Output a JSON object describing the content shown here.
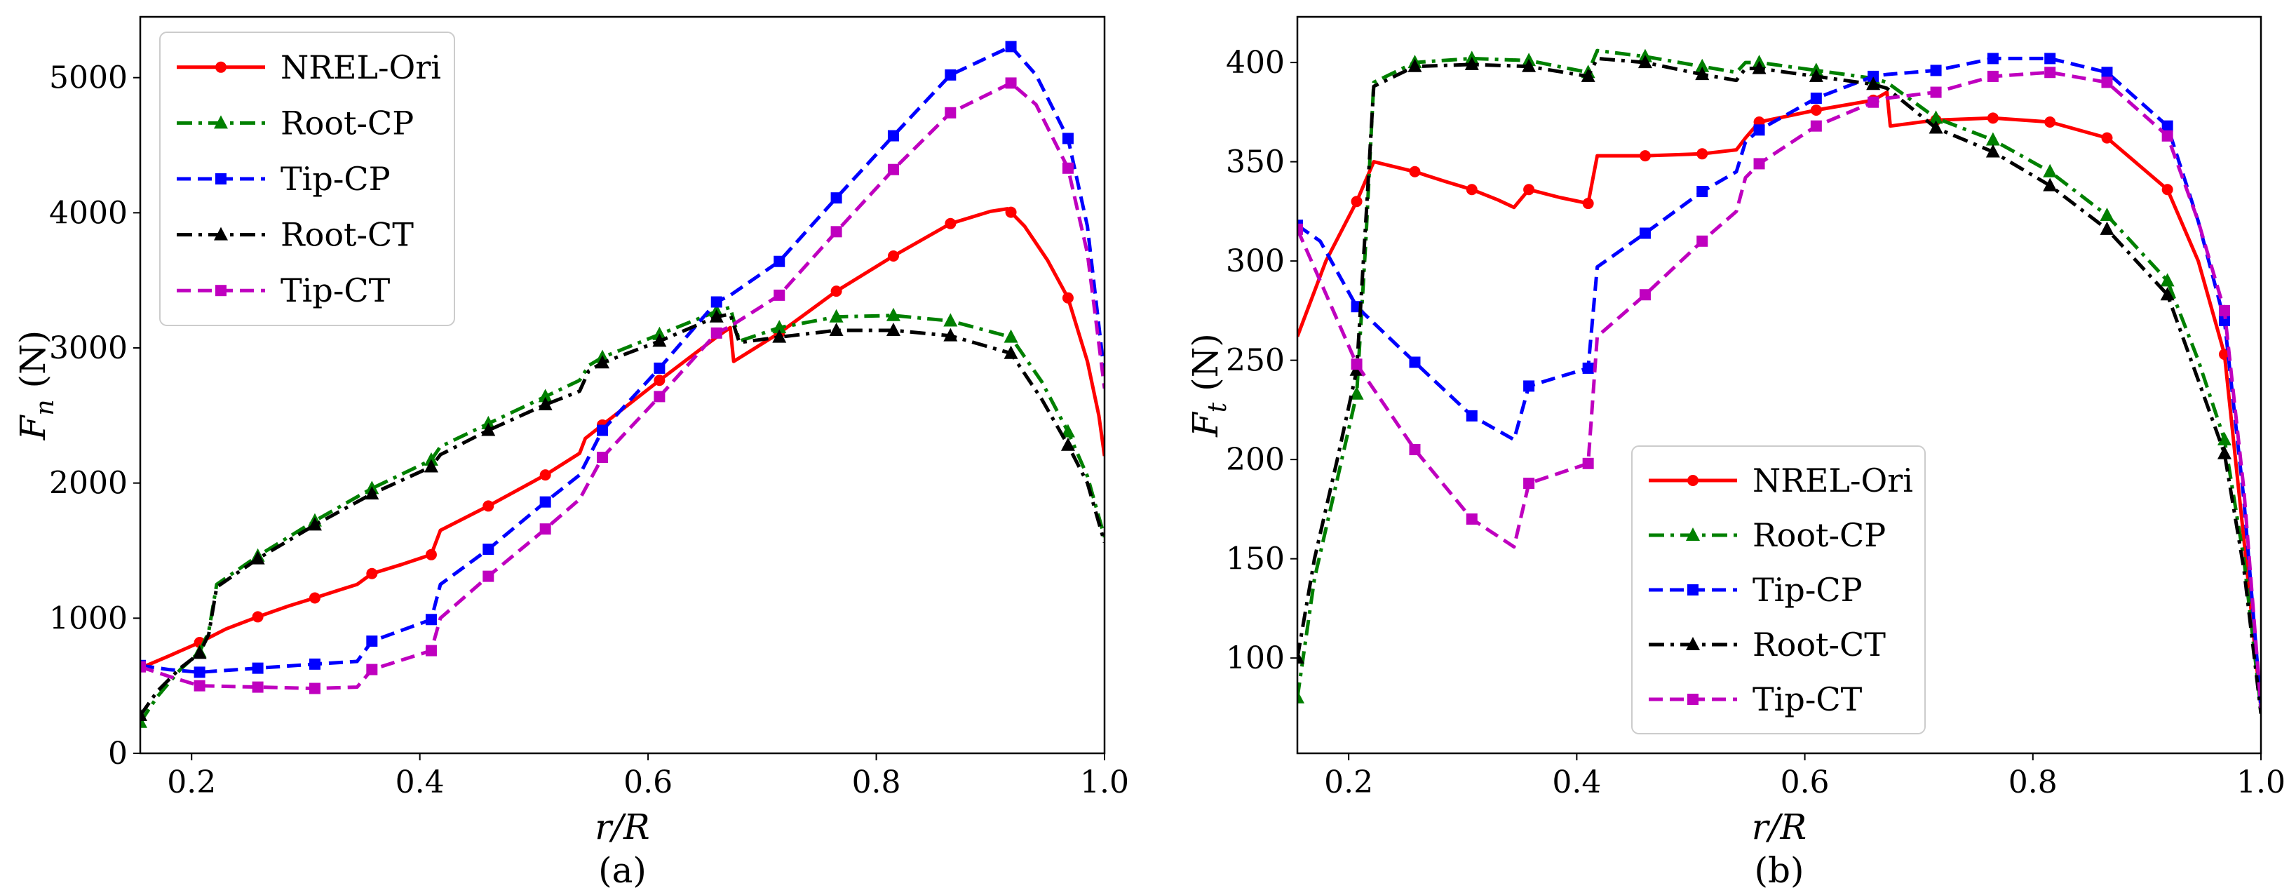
{
  "chart_data": [
    {
      "type": "line",
      "caption": "(a)",
      "xlabel": "r/R",
      "ylabel": "Fn (N)",
      "ylabel_main": "F",
      "ylabel_sub": "n",
      "ylabel_unit": " (N)",
      "xlim": [
        0.155,
        1.0
      ],
      "ylim": [
        0,
        5450
      ],
      "xticks": [
        0.2,
        0.4,
        0.6,
        0.8,
        1.0
      ],
      "xtick_labels": [
        "0.2",
        "0.4",
        "0.6",
        "0.8",
        "1.0"
      ],
      "yticks": [
        0,
        1000,
        2000,
        3000,
        4000,
        5000
      ],
      "ytick_labels": [
        "0",
        "1000",
        "2000",
        "3000",
        "4000",
        "5000"
      ],
      "legend_position": "upper-left",
      "series": [
        {
          "name": "NREL-Ori",
          "color": "#ff0000",
          "dash": "solid",
          "marker": "circle",
          "x": [
            0.155,
            0.18,
            0.207,
            0.23,
            0.258,
            0.285,
            0.308,
            0.33,
            0.345,
            0.358,
            0.385,
            0.41,
            0.418,
            0.46,
            0.51,
            0.54,
            0.545,
            0.56,
            0.61,
            0.66,
            0.672,
            0.675,
            0.715,
            0.765,
            0.815,
            0.865,
            0.9,
            0.915,
            0.93,
            0.95,
            0.968,
            0.985,
            0.995,
            1.0
          ],
          "y": [
            630,
            720,
            820,
            920,
            1010,
            1090,
            1150,
            1210,
            1250,
            1330,
            1400,
            1470,
            1650,
            1830,
            2060,
            2220,
            2330,
            2430,
            2760,
            3080,
            3150,
            2900,
            3110,
            3420,
            3680,
            3920,
            4010,
            4030,
            3900,
            3650,
            3370,
            2900,
            2500,
            2200
          ],
          "marker_x": [
            0.207,
            0.258,
            0.308,
            0.358,
            0.41,
            0.46,
            0.51,
            0.56,
            0.61,
            0.715,
            0.765,
            0.815,
            0.865,
            0.918,
            0.968
          ]
        },
        {
          "name": "Root-CP",
          "color": "#008000",
          "dash": "dashdot",
          "marker": "triangle",
          "x": [
            0.155,
            0.17,
            0.19,
            0.207,
            0.215,
            0.222,
            0.258,
            0.308,
            0.358,
            0.41,
            0.418,
            0.46,
            0.51,
            0.54,
            0.548,
            0.56,
            0.61,
            0.66,
            0.672,
            0.68,
            0.715,
            0.765,
            0.815,
            0.865,
            0.918,
            0.945,
            0.968,
            0.985,
            1.0
          ],
          "y": [
            230,
            420,
            620,
            750,
            900,
            1250,
            1460,
            1720,
            1960,
            2170,
            2270,
            2440,
            2640,
            2760,
            2870,
            2930,
            3100,
            3270,
            3300,
            3050,
            3150,
            3230,
            3240,
            3200,
            3080,
            2750,
            2380,
            2050,
            1600
          ],
          "marker_x": [
            0.155,
            0.207,
            0.258,
            0.308,
            0.358,
            0.41,
            0.46,
            0.51,
            0.56,
            0.61,
            0.66,
            0.715,
            0.765,
            0.815,
            0.865,
            0.918,
            0.968
          ]
        },
        {
          "name": "Tip-CP",
          "color": "#0000ff",
          "dash": "dashed",
          "marker": "square",
          "x": [
            0.155,
            0.18,
            0.207,
            0.258,
            0.308,
            0.345,
            0.358,
            0.41,
            0.418,
            0.46,
            0.51,
            0.54,
            0.56,
            0.61,
            0.66,
            0.672,
            0.715,
            0.765,
            0.815,
            0.865,
            0.918,
            0.94,
            0.968,
            0.985,
            1.0
          ],
          "y": [
            650,
            620,
            600,
            630,
            660,
            680,
            830,
            990,
            1250,
            1510,
            1860,
            2060,
            2390,
            2850,
            3340,
            3390,
            3640,
            4110,
            4570,
            5020,
            5230,
            5020,
            4550,
            3900,
            2800
          ],
          "marker_x": [
            0.155,
            0.207,
            0.258,
            0.308,
            0.358,
            0.41,
            0.46,
            0.51,
            0.56,
            0.61,
            0.66,
            0.715,
            0.765,
            0.815,
            0.865,
            0.918,
            0.968
          ]
        },
        {
          "name": "Root-CT",
          "color": "#000000",
          "dash": "dashdot",
          "marker": "triangle",
          "x": [
            0.155,
            0.17,
            0.19,
            0.207,
            0.215,
            0.222,
            0.258,
            0.308,
            0.358,
            0.41,
            0.418,
            0.46,
            0.51,
            0.54,
            0.548,
            0.56,
            0.61,
            0.66,
            0.672,
            0.68,
            0.715,
            0.765,
            0.815,
            0.865,
            0.918,
            0.945,
            0.968,
            0.985,
            1.0
          ],
          "y": [
            280,
            460,
            630,
            740,
            880,
            1230,
            1440,
            1690,
            1920,
            2120,
            2210,
            2390,
            2580,
            2680,
            2830,
            2890,
            3050,
            3230,
            3250,
            3040,
            3080,
            3130,
            3130,
            3090,
            2960,
            2620,
            2280,
            2000,
            1560
          ],
          "marker_x": [
            0.155,
            0.207,
            0.258,
            0.308,
            0.358,
            0.41,
            0.46,
            0.51,
            0.56,
            0.61,
            0.66,
            0.715,
            0.765,
            0.815,
            0.865,
            0.918,
            0.968
          ]
        },
        {
          "name": "Tip-CT",
          "color": "#bf00bf",
          "dash": "dashed",
          "marker": "square",
          "x": [
            0.155,
            0.18,
            0.207,
            0.258,
            0.308,
            0.345,
            0.358,
            0.41,
            0.418,
            0.46,
            0.51,
            0.54,
            0.56,
            0.61,
            0.66,
            0.672,
            0.715,
            0.765,
            0.815,
            0.865,
            0.918,
            0.94,
            0.968,
            0.985,
            1.0
          ],
          "y": [
            640,
            570,
            500,
            490,
            480,
            490,
            620,
            760,
            1000,
            1310,
            1660,
            1880,
            2190,
            2640,
            3110,
            3160,
            3390,
            3860,
            4320,
            4740,
            4960,
            4800,
            4330,
            3700,
            2700
          ],
          "marker_x": [
            0.155,
            0.207,
            0.258,
            0.308,
            0.358,
            0.41,
            0.46,
            0.51,
            0.56,
            0.61,
            0.66,
            0.715,
            0.765,
            0.815,
            0.865,
            0.918,
            0.968
          ]
        }
      ]
    },
    {
      "type": "line",
      "caption": "(b)",
      "xlabel": "r/R",
      "ylabel": "Ft (N)",
      "ylabel_main": "F",
      "ylabel_sub": "t",
      "ylabel_unit": " (N)",
      "xlim": [
        0.155,
        1.0
      ],
      "ylim": [
        52,
        423
      ],
      "xticks": [
        0.2,
        0.4,
        0.6,
        0.8,
        1.0
      ],
      "xtick_labels": [
        "0.2",
        "0.4",
        "0.6",
        "0.8",
        "1.0"
      ],
      "yticks": [
        100,
        150,
        200,
        250,
        300,
        350,
        400
      ],
      "ytick_labels": [
        "100",
        "150",
        "200",
        "250",
        "300",
        "350",
        "400"
      ],
      "legend_position": "lower-center",
      "series": [
        {
          "name": "NREL-Ori",
          "color": "#ff0000",
          "dash": "solid",
          "marker": "circle",
          "x": [
            0.155,
            0.18,
            0.207,
            0.222,
            0.258,
            0.285,
            0.308,
            0.33,
            0.345,
            0.358,
            0.385,
            0.41,
            0.418,
            0.46,
            0.51,
            0.54,
            0.548,
            0.56,
            0.61,
            0.66,
            0.672,
            0.675,
            0.715,
            0.765,
            0.815,
            0.865,
            0.918,
            0.945,
            0.968,
            0.985,
            1.0
          ],
          "y": [
            262,
            300,
            330,
            350,
            345,
            340,
            336,
            331,
            327,
            336,
            332,
            329,
            353,
            353,
            354,
            356,
            362,
            370,
            376,
            381,
            385,
            368,
            371,
            372,
            370,
            362,
            336,
            300,
            253,
            160,
            75
          ],
          "marker_x": [
            0.207,
            0.258,
            0.308,
            0.358,
            0.41,
            0.46,
            0.51,
            0.56,
            0.61,
            0.66,
            0.715,
            0.765,
            0.815,
            0.865,
            0.918,
            0.968
          ]
        },
        {
          "name": "Root-CP",
          "color": "#008000",
          "dash": "dashdot",
          "marker": "triangle",
          "x": [
            0.155,
            0.17,
            0.19,
            0.207,
            0.215,
            0.222,
            0.258,
            0.308,
            0.358,
            0.41,
            0.418,
            0.46,
            0.51,
            0.54,
            0.548,
            0.56,
            0.61,
            0.66,
            0.672,
            0.715,
            0.765,
            0.815,
            0.865,
            0.918,
            0.945,
            0.968,
            0.985,
            1.0
          ],
          "y": [
            80,
            140,
            190,
            233,
            310,
            390,
            400,
            402,
            401,
            395,
            406,
            403,
            398,
            395,
            400,
            400,
            396,
            392,
            390,
            372,
            361,
            345,
            323,
            290,
            250,
            210,
            150,
            74
          ],
          "marker_x": [
            0.155,
            0.207,
            0.258,
            0.308,
            0.358,
            0.41,
            0.46,
            0.51,
            0.56,
            0.61,
            0.66,
            0.715,
            0.765,
            0.815,
            0.865,
            0.918,
            0.968
          ]
        },
        {
          "name": "Tip-CP",
          "color": "#0000ff",
          "dash": "dashed",
          "marker": "square",
          "x": [
            0.155,
            0.175,
            0.207,
            0.258,
            0.308,
            0.345,
            0.358,
            0.41,
            0.418,
            0.46,
            0.51,
            0.54,
            0.548,
            0.56,
            0.61,
            0.66,
            0.672,
            0.715,
            0.765,
            0.815,
            0.865,
            0.918,
            0.945,
            0.968,
            0.985,
            1.0
          ],
          "y": [
            318,
            310,
            277,
            249,
            222,
            210,
            237,
            246,
            297,
            314,
            335,
            345,
            360,
            366,
            382,
            393,
            394,
            396,
            402,
            402,
            395,
            368,
            320,
            270,
            180,
            75
          ],
          "marker_x": [
            0.155,
            0.207,
            0.258,
            0.308,
            0.358,
            0.41,
            0.46,
            0.51,
            0.56,
            0.61,
            0.66,
            0.715,
            0.765,
            0.815,
            0.865,
            0.918,
            0.968
          ]
        },
        {
          "name": "Root-CT",
          "color": "#000000",
          "dash": "dashdot",
          "marker": "triangle",
          "x": [
            0.155,
            0.17,
            0.19,
            0.207,
            0.215,
            0.222,
            0.258,
            0.308,
            0.358,
            0.41,
            0.418,
            0.46,
            0.51,
            0.54,
            0.548,
            0.56,
            0.61,
            0.66,
            0.672,
            0.715,
            0.765,
            0.815,
            0.865,
            0.918,
            0.945,
            0.968,
            0.985,
            1.0
          ],
          "y": [
            100,
            150,
            200,
            245,
            320,
            388,
            398,
            399,
            398,
            393,
            402,
            400,
            394,
            391,
            397,
            397,
            393,
            389,
            387,
            367,
            355,
            338,
            316,
            283,
            240,
            203,
            145,
            72
          ],
          "marker_x": [
            0.155,
            0.207,
            0.258,
            0.308,
            0.358,
            0.41,
            0.46,
            0.51,
            0.56,
            0.61,
            0.66,
            0.715,
            0.765,
            0.815,
            0.865,
            0.918,
            0.968
          ]
        },
        {
          "name": "Tip-CT",
          "color": "#bf00bf",
          "dash": "dashed",
          "marker": "square",
          "x": [
            0.155,
            0.175,
            0.207,
            0.258,
            0.308,
            0.345,
            0.358,
            0.41,
            0.418,
            0.46,
            0.51,
            0.54,
            0.548,
            0.56,
            0.61,
            0.66,
            0.672,
            0.715,
            0.765,
            0.815,
            0.865,
            0.918,
            0.945,
            0.968,
            0.985,
            1.0
          ],
          "y": [
            316,
            290,
            248,
            205,
            170,
            156,
            188,
            198,
            262,
            283,
            310,
            325,
            342,
            349,
            368,
            380,
            382,
            385,
            393,
            395,
            390,
            363,
            320,
            275,
            185,
            75
          ],
          "marker_x": [
            0.155,
            0.207,
            0.258,
            0.308,
            0.358,
            0.41,
            0.46,
            0.51,
            0.56,
            0.61,
            0.66,
            0.715,
            0.765,
            0.815,
            0.865,
            0.918,
            0.968
          ]
        }
      ]
    }
  ]
}
